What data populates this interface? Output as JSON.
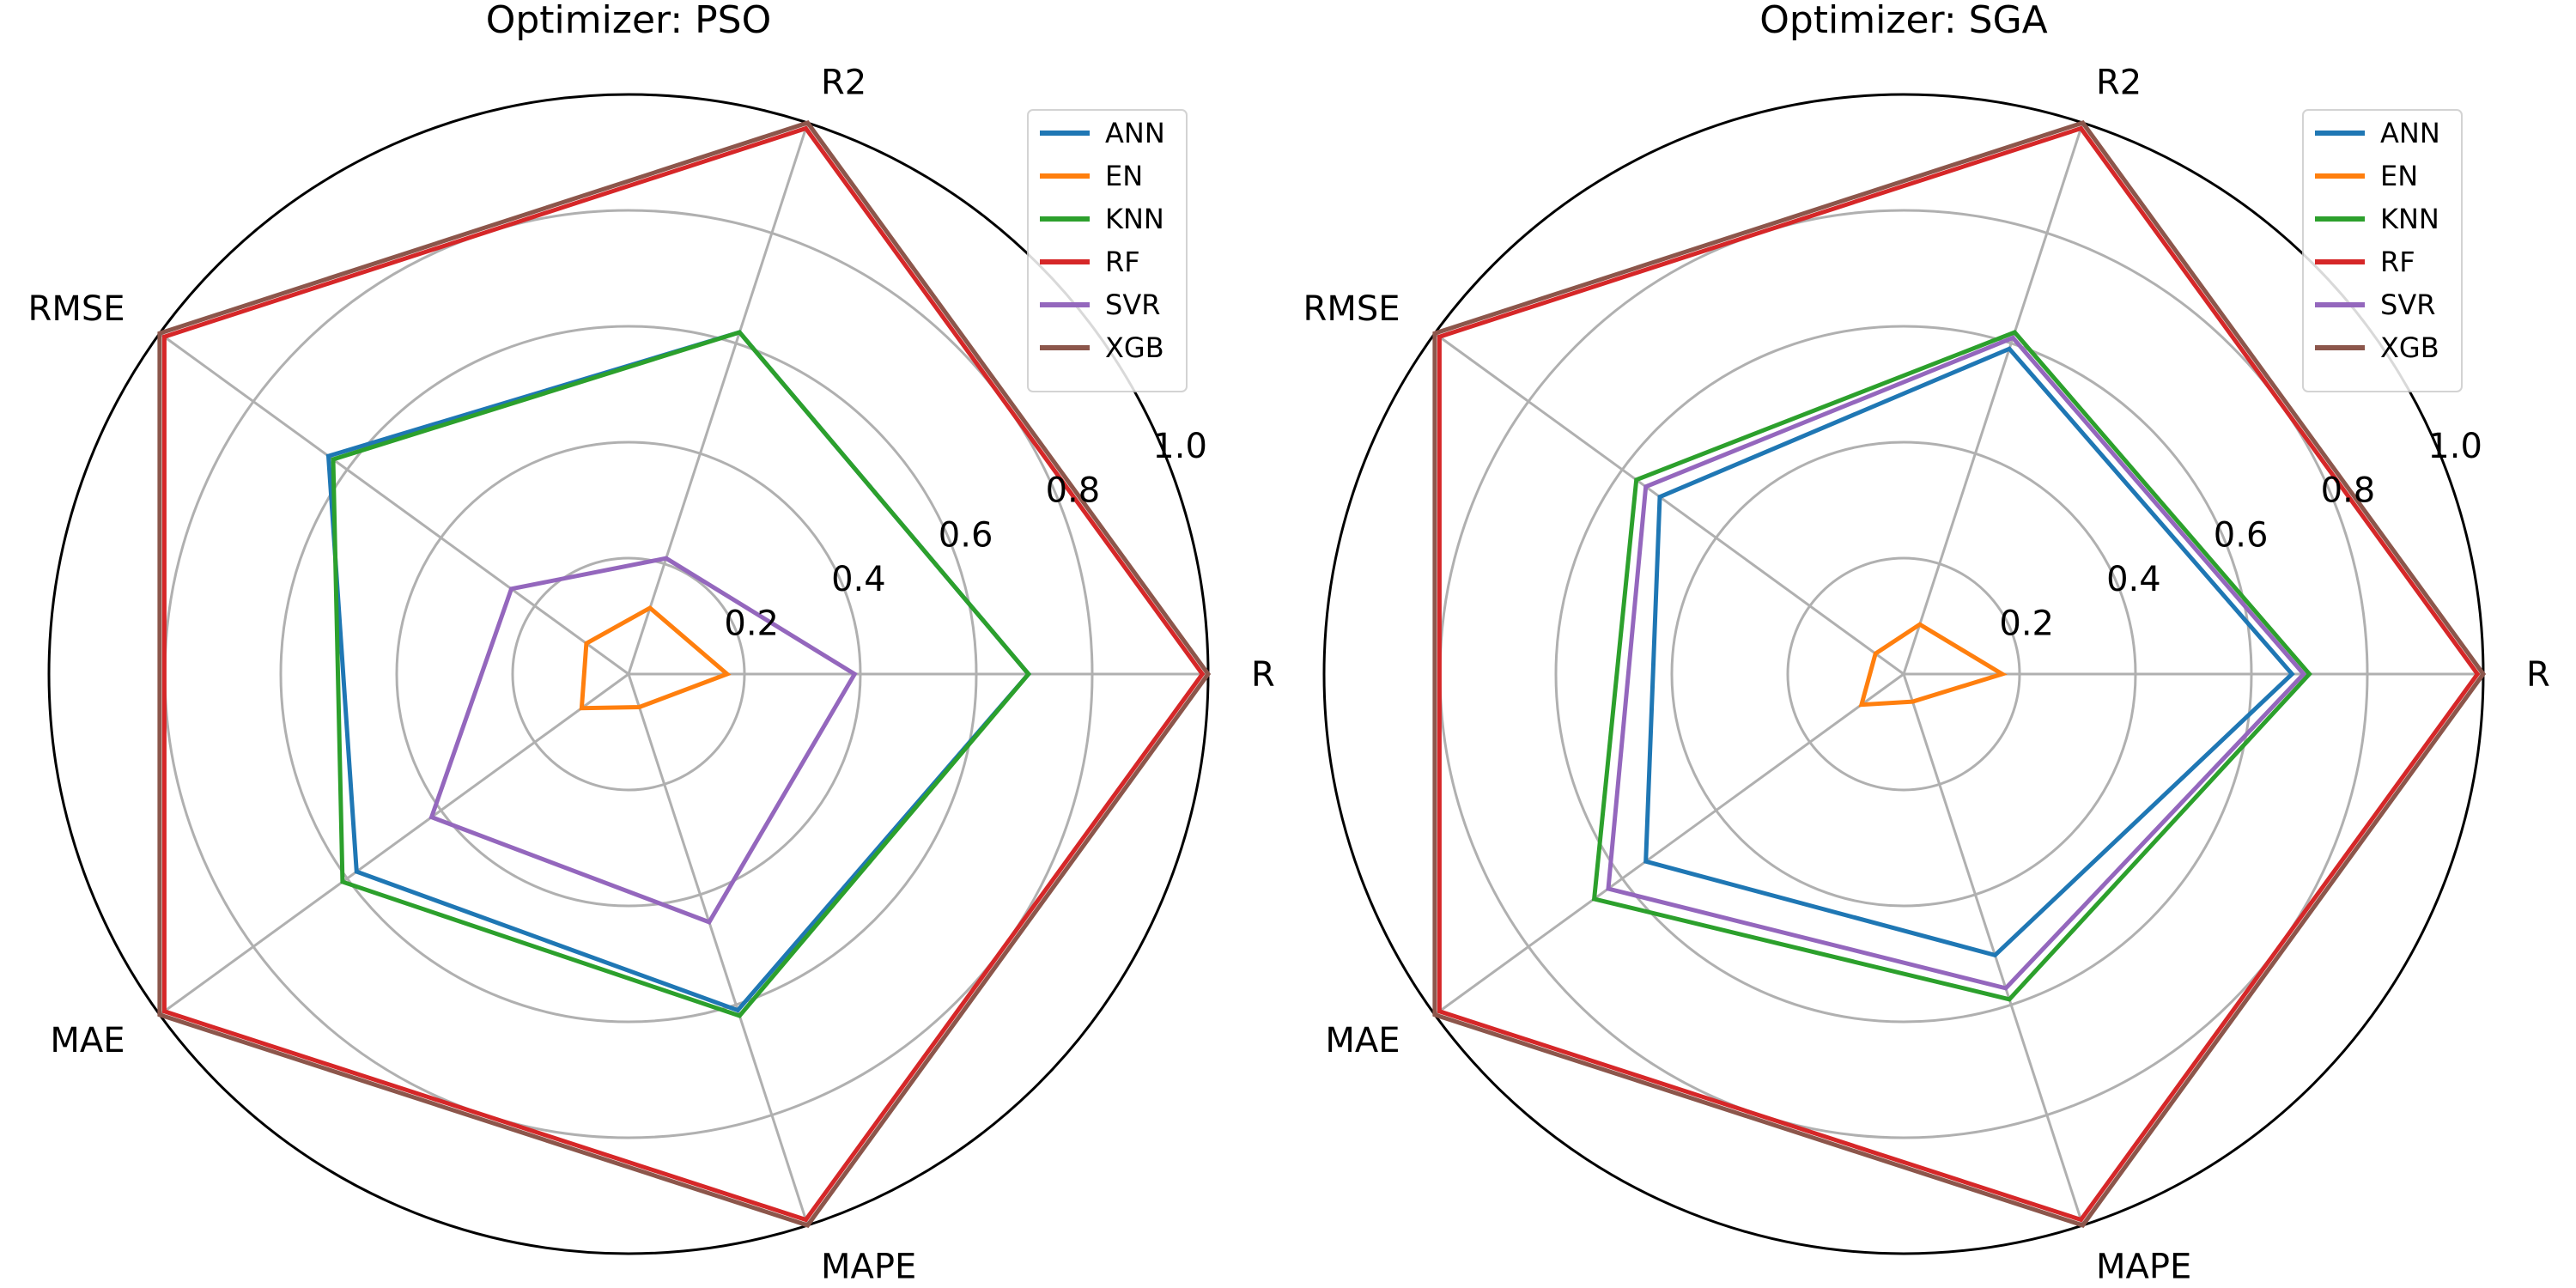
{
  "chart_data": [
    {
      "type": "radar",
      "title": "Optimizer: PSO",
      "axes": [
        "R",
        "R2",
        "RMSE",
        "MAE",
        "MAPE"
      ],
      "rlim": [
        0,
        1.0
      ],
      "rticks": [
        "0.2",
        "0.4",
        "0.6",
        "0.8",
        "1.0"
      ],
      "grid": true,
      "legend": "top-right",
      "series": [
        {
          "name": "ANN",
          "color": "#1f77b4",
          "values": [
            0.69,
            0.62,
            0.64,
            0.58,
            0.61
          ]
        },
        {
          "name": "EN",
          "color": "#ff7f0e",
          "values": [
            0.17,
            0.12,
            0.09,
            0.1,
            0.06
          ]
        },
        {
          "name": "KNN",
          "color": "#2ca02c",
          "values": [
            0.69,
            0.62,
            0.63,
            0.61,
            0.62
          ]
        },
        {
          "name": "RF",
          "color": "#d62728",
          "values": [
            0.99,
            0.99,
            0.99,
            0.99,
            0.99
          ]
        },
        {
          "name": "SVR",
          "color": "#9467bd",
          "values": [
            0.39,
            0.21,
            0.25,
            0.42,
            0.45
          ]
        },
        {
          "name": "XGB",
          "color": "#8c564b",
          "values": [
            1.0,
            1.0,
            1.0,
            1.0,
            1.0
          ]
        }
      ]
    },
    {
      "type": "radar",
      "title": "Optimizer: SGA",
      "axes": [
        "R",
        "R2",
        "RMSE",
        "MAE",
        "MAPE"
      ],
      "rlim": [
        0,
        1.0
      ],
      "rticks": [
        "0.2",
        "0.4",
        "0.6",
        "0.8",
        "1.0"
      ],
      "grid": true,
      "legend": "top-right",
      "series": [
        {
          "name": "ANN",
          "color": "#1f77b4",
          "values": [
            0.67,
            0.59,
            0.52,
            0.55,
            0.51
          ]
        },
        {
          "name": "EN",
          "color": "#ff7f0e",
          "values": [
            0.17,
            0.09,
            0.06,
            0.09,
            0.05
          ]
        },
        {
          "name": "KNN",
          "color": "#2ca02c",
          "values": [
            0.7,
            0.62,
            0.57,
            0.66,
            0.59
          ]
        },
        {
          "name": "RF",
          "color": "#d62728",
          "values": [
            0.99,
            0.99,
            0.99,
            0.99,
            0.99
          ]
        },
        {
          "name": "SVR",
          "color": "#9467bd",
          "values": [
            0.69,
            0.61,
            0.55,
            0.63,
            0.57
          ]
        },
        {
          "name": "XGB",
          "color": "#8c564b",
          "values": [
            1.0,
            1.0,
            1.0,
            1.0,
            1.0
          ]
        }
      ]
    }
  ]
}
